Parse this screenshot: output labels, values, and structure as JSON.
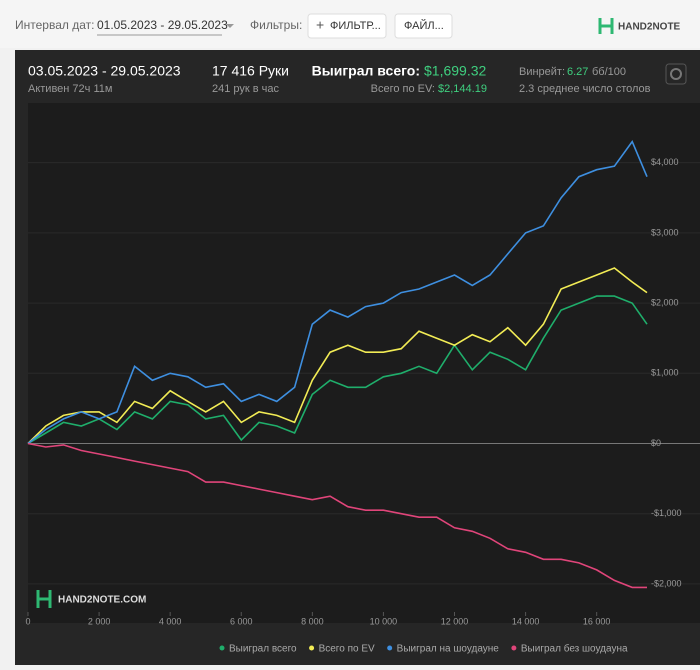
{
  "toolbar": {
    "date_label": "Интервал дат:",
    "date_range": "01.05.2023 - 29.05.2023",
    "filters_label": "Фильтры:",
    "filter_button": "ФИЛЬТР...",
    "file_button": "ФАЙЛ...",
    "logo": "HAND2NOTE"
  },
  "stats": {
    "period": "03.05.2023 - 29.05.2023",
    "active": "Активен 72ч 11м",
    "hands": "17 416 Руки",
    "hands_per_hour": "241 рук в час",
    "won_label": "Выиграл всего:",
    "won_value": "$1,699.32",
    "ev_label": "Всего по EV:",
    "ev_value": "$2,144.19",
    "winrate_label": "Винрейт:",
    "winrate_value": "6.27",
    "winrate_unit": "бб/100",
    "tables": "2.3 среднее число столов"
  },
  "watermark": "HAND2NOTE.COM",
  "chart_data": {
    "type": "line",
    "x": [
      0,
      500,
      1000,
      1500,
      2000,
      2500,
      3000,
      3500,
      4000,
      4500,
      5000,
      5500,
      6000,
      6500,
      7000,
      7500,
      8000,
      8500,
      9000,
      9500,
      10000,
      10500,
      11000,
      11500,
      12000,
      12500,
      13000,
      13500,
      14000,
      14500,
      15000,
      15500,
      16000,
      16500,
      17000,
      17416
    ],
    "series": [
      {
        "name": "Выиграл всего",
        "color": "#1fae6b",
        "values": [
          0,
          150,
          300,
          250,
          350,
          200,
          450,
          350,
          600,
          550,
          350,
          400,
          50,
          300,
          250,
          150,
          700,
          900,
          800,
          800,
          950,
          1000,
          1100,
          1000,
          1400,
          1050,
          1300,
          1200,
          1050,
          1500,
          1900,
          2000,
          2100,
          2100,
          2000,
          1700
        ]
      },
      {
        "name": "Всего по EV",
        "color": "#f2ec55",
        "values": [
          0,
          250,
          400,
          450,
          450,
          300,
          600,
          500,
          750,
          600,
          450,
          600,
          300,
          450,
          400,
          300,
          900,
          1300,
          1400,
          1300,
          1300,
          1350,
          1600,
          1500,
          1400,
          1550,
          1450,
          1650,
          1400,
          1700,
          2200,
          2300,
          2400,
          2500,
          2300,
          2150
        ]
      },
      {
        "name": "Выиграл на шоудауне",
        "color": "#3e8fe0",
        "values": [
          0,
          200,
          350,
          450,
          350,
          450,
          1100,
          900,
          1000,
          950,
          800,
          850,
          600,
          700,
          600,
          800,
          1700,
          1900,
          1800,
          1950,
          2000,
          2150,
          2200,
          2300,
          2400,
          2250,
          2400,
          2700,
          3000,
          3100,
          3500,
          3800,
          3900,
          3950,
          4300,
          3800
        ]
      },
      {
        "name": "Выиграл без шоудауна",
        "color": "#e0457a",
        "values": [
          0,
          -50,
          -20,
          -100,
          -150,
          -200,
          -250,
          -300,
          -350,
          -400,
          -550,
          -550,
          -600,
          -650,
          -700,
          -750,
          -800,
          -750,
          -900,
          -950,
          -950,
          -1000,
          -1050,
          -1050,
          -1200,
          -1250,
          -1350,
          -1500,
          -1550,
          -1650,
          -1650,
          -1700,
          -1800,
          -1950,
          -2050,
          -2050
        ]
      }
    ],
    "xlim": [
      0,
      17416
    ],
    "xticks": [
      0,
      {
        "value": 2000,
        "label": "2 000"
      },
      {
        "value": 4000,
        "label": "4 000"
      },
      {
        "value": 6000,
        "label": "6 000"
      },
      {
        "value": 8000,
        "label": "8 000"
      },
      {
        "value": 10000,
        "label": "10 000"
      },
      {
        "value": 12000,
        "label": "12 000"
      },
      {
        "value": 14000,
        "label": "14 000"
      },
      {
        "value": 16000,
        "label": "16 000"
      }
    ],
    "ylim": [
      -2400,
      4850
    ],
    "yticks": [
      {
        "value": -2000,
        "label": "-$2,000"
      },
      {
        "value": -1000,
        "label": "-$1,000"
      },
      {
        "value": 0,
        "label": "$0"
      },
      {
        "value": 1000,
        "label": "$1,000"
      },
      {
        "value": 2000,
        "label": "$2,000"
      },
      {
        "value": 3000,
        "label": "$3,000"
      },
      {
        "value": 4000,
        "label": "$4,000"
      }
    ]
  }
}
